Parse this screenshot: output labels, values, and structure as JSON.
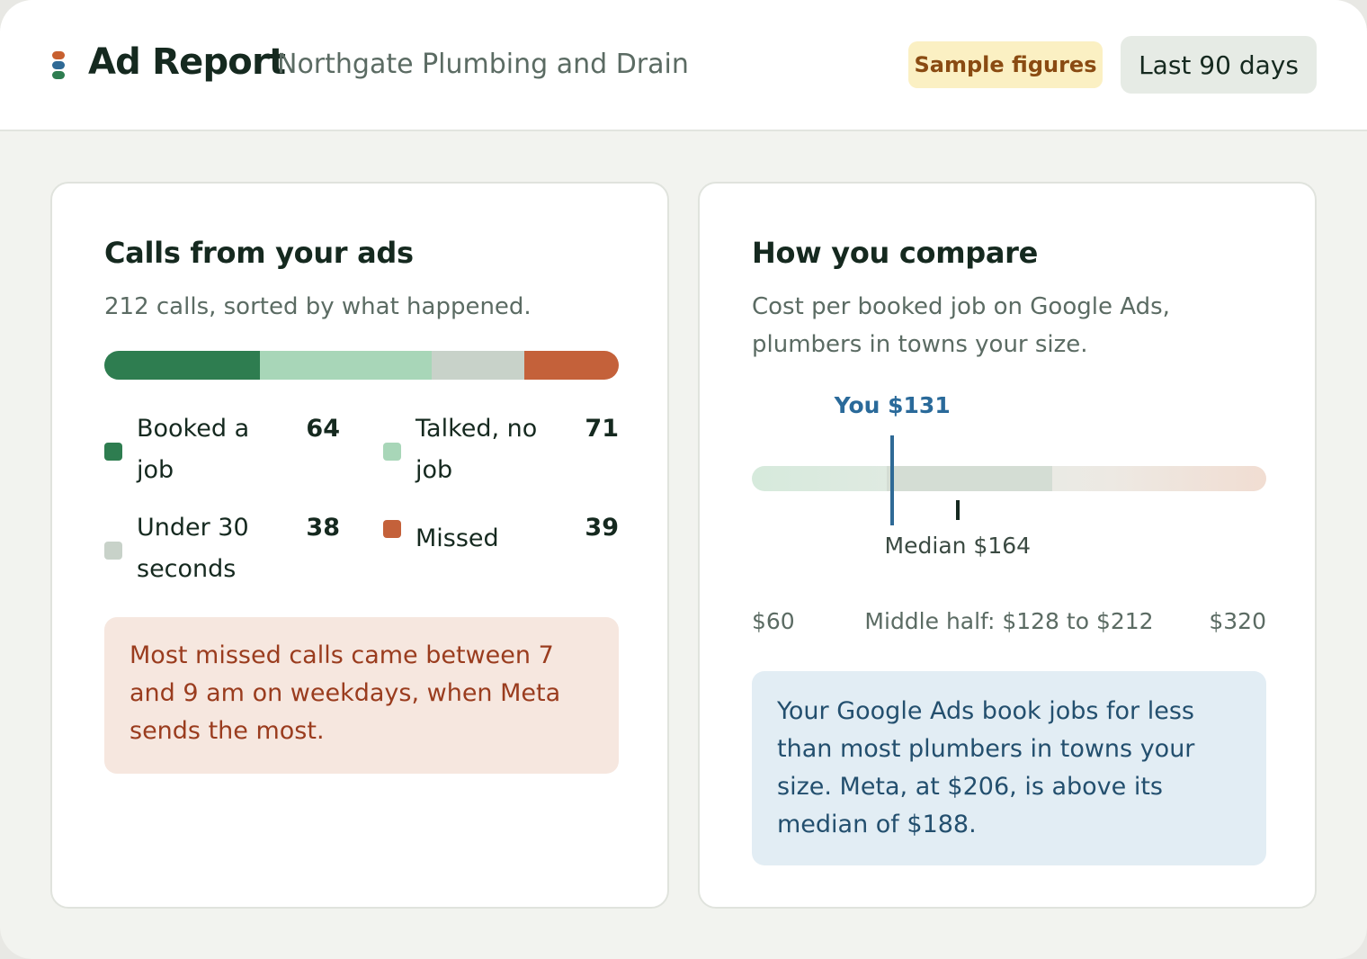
{
  "header": {
    "app_title": "Ad Report",
    "business_name": "Northgate Plumbing and Drain",
    "sample_badge": "Sample figures",
    "date_range": "Last 90 days",
    "logo_colors": [
      "#c8602f",
      "#2f6a96",
      "#2e7d50"
    ]
  },
  "calls_card": {
    "title": "Calls from your ads",
    "subtitle": "212 calls, sorted by what happened.",
    "total": 212,
    "segments": [
      {
        "label": "Booked a job",
        "value": "64",
        "color": "#2e7d50"
      },
      {
        "label": "Talked, no job",
        "value": "71",
        "color": "#a8d6b8"
      },
      {
        "label": "Under 30 seconds",
        "value": "38",
        "color": "#c8d2c9"
      },
      {
        "label": "Missed",
        "value": "39",
        "color": "#c4613a"
      }
    ],
    "note": "Most missed calls came between 7 and 9 am on weekdays, when Meta sends the most."
  },
  "compare_card": {
    "title": "How you compare",
    "subtitle": "Cost per booked job on Google Ads, plumbers in towns your size.",
    "scale_min": 60,
    "scale_max": 320,
    "you_value": 131,
    "median_value": 164,
    "iqr_low": 128,
    "iqr_high": 212,
    "you_label": "You $131",
    "median_label": "Median $164",
    "min_label": "$60",
    "max_label": "$320",
    "iqr_label": "Middle half: $128 to $212",
    "note": "Your Google Ads book jobs for less than most plumbers in towns your size. Meta, at $206, is above its median of $188."
  }
}
